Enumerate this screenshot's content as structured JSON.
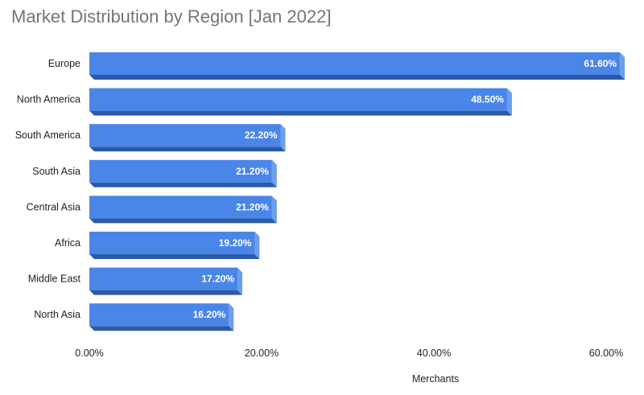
{
  "chart_data": {
    "type": "bar",
    "orientation": "horizontal",
    "title": "Market Distribution by Region [Jan 2022]",
    "xlabel": "Merchants",
    "ylabel": "",
    "categories": [
      "Europe",
      "North America",
      "South America",
      "South Asia",
      "Central Asia",
      "Africa",
      "Middle East",
      "North Asia"
    ],
    "values": [
      61.6,
      48.5,
      22.2,
      21.2,
      21.2,
      19.2,
      17.2,
      16.2
    ],
    "value_labels": [
      "61.60%",
      "48.50%",
      "22.20%",
      "21.20%",
      "21.20%",
      "19.20%",
      "17.20%",
      "16.20%"
    ],
    "xticks": [
      0,
      20,
      40,
      60
    ],
    "xtick_labels": [
      "0.00%",
      "20.00%",
      "40.00%",
      "60.00%"
    ],
    "xlim": [
      0,
      60
    ],
    "grid": false,
    "legend": "none",
    "colors": {
      "bar_front": "#4a86e8",
      "bar_bottom": "#2d5aa8",
      "bar_side": "#6d9eeb"
    }
  }
}
